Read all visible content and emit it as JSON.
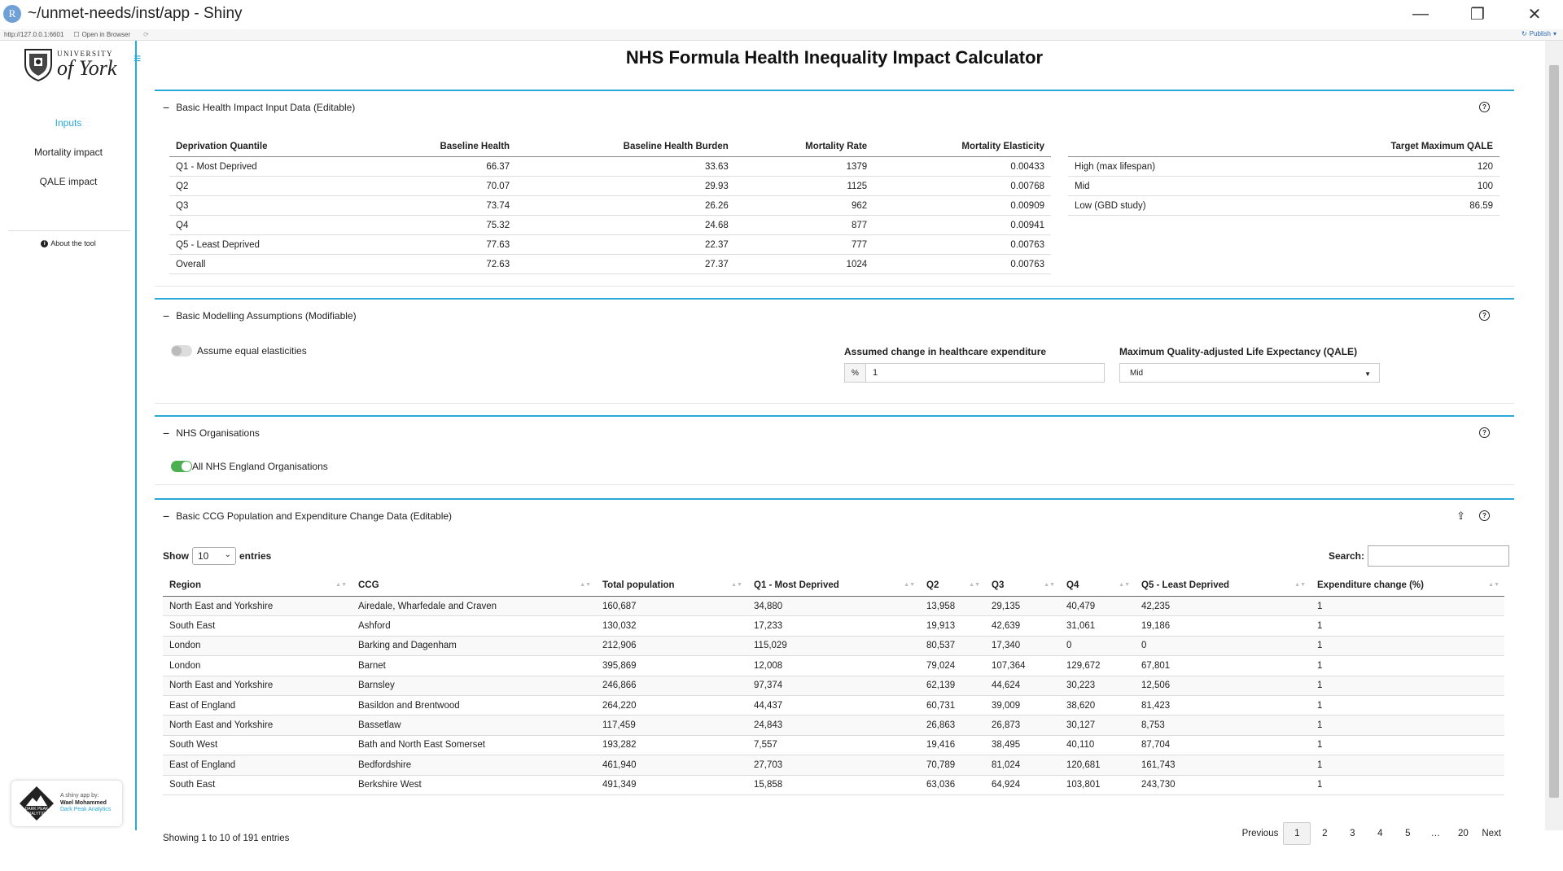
{
  "window": {
    "title": "~/unmet-needs/inst/app - Shiny",
    "r_logo": "R",
    "minimize": "—",
    "restore": "❐",
    "close": "✕"
  },
  "addressbar": {
    "url": "http://127.0.0.1:6601",
    "open_in_browser": "Open in Browser",
    "publish": "Publish"
  },
  "sidebar": {
    "logo_university": "UNIVERSITY",
    "logo_of_york": "of York",
    "items": [
      {
        "label": "Inputs"
      },
      {
        "label": "Mortality impact"
      },
      {
        "label": "QALE impact"
      }
    ],
    "about": "About the tool",
    "dpa": {
      "badge_line1": "DARK PEAK",
      "badge_line2": "ANALYTICS",
      "by": "A shiny app by:",
      "name": "Wael Mohammed",
      "company": "Dark Peak Analytics"
    }
  },
  "page_title": "NHS Formula Health Inequality Impact Calculator",
  "box1": {
    "title": "Basic Health Impact Input Data (Editable)",
    "table1": {
      "headers": [
        "Deprivation Quantile",
        "Baseline Health",
        "Baseline Health Burden",
        "Mortality Rate",
        "Mortality Elasticity"
      ],
      "rows": [
        [
          "Q1 - Most Deprived",
          "66.37",
          "33.63",
          "1379",
          "0.00433"
        ],
        [
          "Q2",
          "70.07",
          "29.93",
          "1125",
          "0.00768"
        ],
        [
          "Q3",
          "73.74",
          "26.26",
          "962",
          "0.00909"
        ],
        [
          "Q4",
          "75.32",
          "24.68",
          "877",
          "0.00941"
        ],
        [
          "Q5 - Least Deprived",
          "77.63",
          "22.37",
          "777",
          "0.00763"
        ],
        [
          "Overall",
          "72.63",
          "27.37",
          "1024",
          "0.00763"
        ]
      ]
    },
    "table2": {
      "headers": [
        "",
        "Target Maximum QALE"
      ],
      "rows": [
        [
          "High (max lifespan)",
          "120"
        ],
        [
          "Mid",
          "100"
        ],
        [
          "Low (GBD study)",
          "86.59"
        ]
      ]
    }
  },
  "box2": {
    "title": "Basic Modelling Assumptions (Modifiable)",
    "equal_elasticities": "Assume equal elasticities",
    "expenditure_label": "Assumed change in healthcare expenditure",
    "expenditure_addon": "%",
    "expenditure_value": "1",
    "qale_label": "Maximum Quality-adjusted Life Expectancy (QALE)",
    "qale_value": "Mid"
  },
  "box3": {
    "title": "NHS Organisations",
    "all_orgs": "All NHS England Organisations"
  },
  "box4": {
    "title": "Basic CCG Population and Expenditure Change Data (Editable)",
    "show": "Show",
    "length_value": "10",
    "entries": "entries",
    "search_label": "Search:",
    "headers": [
      "Region",
      "CCG",
      "Total population",
      "Q1 - Most Deprived",
      "Q2",
      "Q3",
      "Q4",
      "Q5 - Least Deprived",
      "Expenditure change (%)"
    ],
    "rows": [
      [
        "North East and Yorkshire",
        "Airedale, Wharfedale and Craven",
        "160,687",
        "34,880",
        "13,958",
        "29,135",
        "40,479",
        "42,235",
        "1"
      ],
      [
        "South East",
        "Ashford",
        "130,032",
        "17,233",
        "19,913",
        "42,639",
        "31,061",
        "19,186",
        "1"
      ],
      [
        "London",
        "Barking and Dagenham",
        "212,906",
        "115,029",
        "80,537",
        "17,340",
        "0",
        "0",
        "1"
      ],
      [
        "London",
        "Barnet",
        "395,869",
        "12,008",
        "79,024",
        "107,364",
        "129,672",
        "67,801",
        "1"
      ],
      [
        "North East and Yorkshire",
        "Barnsley",
        "246,866",
        "97,374",
        "62,139",
        "44,624",
        "30,223",
        "12,506",
        "1"
      ],
      [
        "East of England",
        "Basildon and Brentwood",
        "264,220",
        "44,437",
        "60,731",
        "39,009",
        "38,620",
        "81,423",
        "1"
      ],
      [
        "North East and Yorkshire",
        "Bassetlaw",
        "117,459",
        "24,843",
        "26,863",
        "26,873",
        "30,127",
        "8,753",
        "1"
      ],
      [
        "South West",
        "Bath and North East Somerset",
        "193,282",
        "7,557",
        "19,416",
        "38,495",
        "40,110",
        "87,704",
        "1"
      ],
      [
        "East of England",
        "Bedfordshire",
        "461,940",
        "27,703",
        "70,789",
        "81,024",
        "120,681",
        "161,743",
        "1"
      ],
      [
        "South East",
        "Berkshire West",
        "491,349",
        "15,858",
        "63,036",
        "64,924",
        "103,801",
        "243,730",
        "1"
      ]
    ],
    "info": "Showing 1 to 10 of 191 entries",
    "pager": {
      "previous": "Previous",
      "pages": [
        "1",
        "2",
        "3",
        "4",
        "5",
        "…",
        "20"
      ],
      "next": "Next"
    }
  },
  "colors": {
    "accent": "#29a9d6",
    "toggle_on": "#4caf50"
  }
}
